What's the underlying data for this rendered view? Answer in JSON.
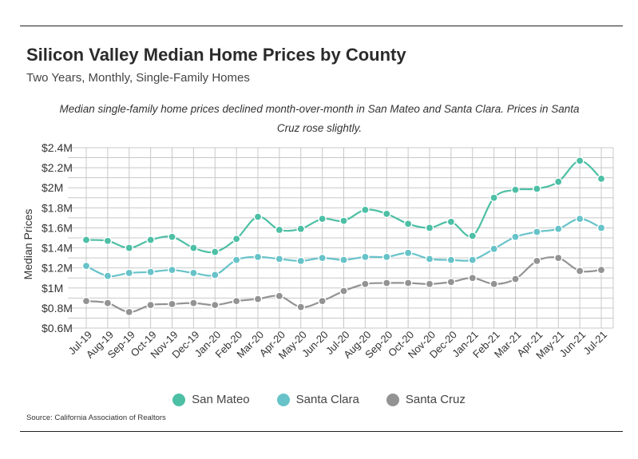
{
  "header": {
    "title": "Silicon Valley Median Home Prices by County",
    "subtitle": "Two Years, Monthly, Single-Family Homes"
  },
  "annotation": "Median single-family home prices declined month-over-month in San Mateo and Santa Clara. Prices in Santa Cruz rose slightly.",
  "source": "Source:  California Association of Realtors",
  "colors": {
    "san_mateo": "#4dbfa5",
    "santa_clara": "#67c3c9",
    "santa_cruz": "#939393",
    "grid": "#c8c8c8"
  },
  "chart_data": {
    "type": "line",
    "ylabel": "Median Prices",
    "ylim": [
      0.6,
      2.4
    ],
    "yticks": [
      0.6,
      0.8,
      1.0,
      1.2,
      1.4,
      1.6,
      1.8,
      2.0,
      2.2,
      2.4
    ],
    "ytick_labels": [
      "$0.6M",
      "$0.8M",
      "$1M",
      "$1.2M",
      "$1.4M",
      "$1.6M",
      "$1.8M",
      "$2M",
      "$2.2M",
      "$2.4M"
    ],
    "grid": true,
    "legend": "bottom",
    "categories": [
      "Jul-19",
      "Aug-19",
      "Sep-19",
      "Oct-19",
      "Nov-19",
      "Dec-19",
      "Jan-20",
      "Feb-20",
      "Mar-20",
      "Apr-20",
      "May-20",
      "Jun-20",
      "Jul-20",
      "Aug-20",
      "Sep-20",
      "Oct-20",
      "Nov-20",
      "Dec-20",
      "Jan-21",
      "Feb-21",
      "Mar-21",
      "Apr-21",
      "May-21",
      "Jun-21",
      "Jul-21"
    ],
    "series": [
      {
        "name": "San Mateo",
        "values": [
          1.48,
          1.47,
          1.4,
          1.48,
          1.51,
          1.4,
          1.36,
          1.49,
          1.71,
          1.58,
          1.59,
          1.69,
          1.67,
          1.78,
          1.74,
          1.64,
          1.6,
          1.66,
          1.52,
          1.9,
          1.98,
          1.99,
          2.06,
          2.27,
          2.09
        ]
      },
      {
        "name": "Santa Clara",
        "values": [
          1.22,
          1.12,
          1.15,
          1.16,
          1.18,
          1.15,
          1.13,
          1.28,
          1.31,
          1.29,
          1.27,
          1.3,
          1.28,
          1.31,
          1.31,
          1.35,
          1.29,
          1.28,
          1.28,
          1.39,
          1.51,
          1.56,
          1.59,
          1.69,
          1.6
        ]
      },
      {
        "name": "Santa Cruz",
        "values": [
          0.87,
          0.85,
          0.76,
          0.83,
          0.84,
          0.85,
          0.83,
          0.87,
          0.89,
          0.92,
          0.81,
          0.87,
          0.97,
          1.04,
          1.05,
          1.05,
          1.04,
          1.06,
          1.1,
          1.04,
          1.09,
          1.27,
          1.3,
          1.17,
          1.18
        ]
      }
    ]
  }
}
